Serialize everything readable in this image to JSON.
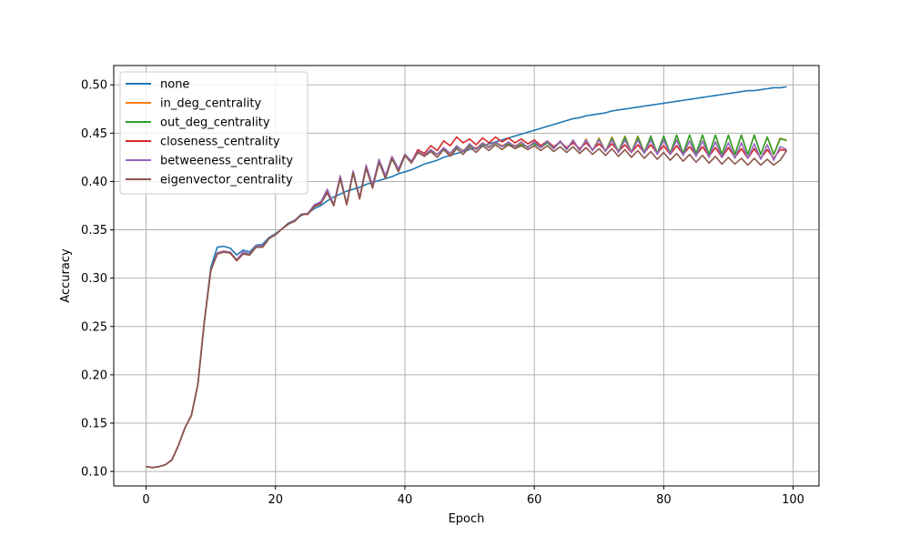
{
  "chart_data": {
    "type": "line",
    "title": "",
    "xlabel": "Epoch",
    "ylabel": "Accuracy",
    "xlim": [
      -5,
      104
    ],
    "ylim": [
      0.085,
      0.52
    ],
    "x_ticks": [
      0,
      20,
      40,
      60,
      80,
      100
    ],
    "x_tick_labels": [
      "0",
      "20",
      "40",
      "60",
      "80",
      "100"
    ],
    "y_ticks": [
      0.1,
      0.15,
      0.2,
      0.25,
      0.3,
      0.35,
      0.4,
      0.45,
      0.5
    ],
    "y_tick_labels": [
      "0.10",
      "0.15",
      "0.20",
      "0.25",
      "0.30",
      "0.35",
      "0.40",
      "0.45",
      "0.50"
    ],
    "grid": true,
    "legend_position": "upper left",
    "series": [
      {
        "name": "none",
        "color": "#1f77b4",
        "values": [
          0.105,
          0.104,
          0.105,
          0.107,
          0.112,
          0.127,
          0.145,
          0.158,
          0.19,
          0.255,
          0.311,
          0.332,
          0.333,
          0.331,
          0.324,
          0.329,
          0.327,
          0.334,
          0.335,
          0.342,
          0.346,
          0.351,
          0.357,
          0.36,
          0.365,
          0.367,
          0.372,
          0.375,
          0.38,
          0.384,
          0.387,
          0.39,
          0.392,
          0.394,
          0.397,
          0.399,
          0.401,
          0.403,
          0.405,
          0.408,
          0.41,
          0.412,
          0.415,
          0.418,
          0.42,
          0.422,
          0.425,
          0.427,
          0.429,
          0.431,
          0.433,
          0.435,
          0.437,
          0.439,
          0.441,
          0.443,
          0.445,
          0.447,
          0.449,
          0.451,
          0.453,
          0.455,
          0.457,
          0.459,
          0.461,
          0.463,
          0.465,
          0.466,
          0.468,
          0.469,
          0.47,
          0.471,
          0.473,
          0.474,
          0.475,
          0.476,
          0.477,
          0.478,
          0.479,
          0.48,
          0.481,
          0.482,
          0.483,
          0.484,
          0.485,
          0.486,
          0.487,
          0.488,
          0.489,
          0.49,
          0.491,
          0.492,
          0.493,
          0.494,
          0.494,
          0.495,
          0.496,
          0.497,
          0.497,
          0.498
        ]
      },
      {
        "name": "in_deg_centrality",
        "color": "#ff7f0e",
        "values": [
          0.105,
          0.104,
          0.105,
          0.107,
          0.112,
          0.127,
          0.145,
          0.158,
          0.19,
          0.255,
          0.308,
          0.326,
          0.328,
          0.327,
          0.319,
          0.327,
          0.325,
          0.333,
          0.333,
          0.341,
          0.345,
          0.351,
          0.356,
          0.36,
          0.366,
          0.366,
          0.374,
          0.377,
          0.39,
          0.375,
          0.404,
          0.376,
          0.41,
          0.382,
          0.415,
          0.394,
          0.421,
          0.404,
          0.424,
          0.411,
          0.427,
          0.42,
          0.43,
          0.427,
          0.431,
          0.428,
          0.434,
          0.428,
          0.436,
          0.432,
          0.438,
          0.434,
          0.44,
          0.436,
          0.441,
          0.437,
          0.44,
          0.437,
          0.439,
          0.436,
          0.44,
          0.435,
          0.441,
          0.434,
          0.442,
          0.433,
          0.443,
          0.432,
          0.444,
          0.432,
          0.445,
          0.431,
          0.446,
          0.431,
          0.447,
          0.43,
          0.447,
          0.43,
          0.447,
          0.429,
          0.447,
          0.429,
          0.448,
          0.429,
          0.448,
          0.429,
          0.448,
          0.428,
          0.448,
          0.428,
          0.448,
          0.428,
          0.448,
          0.428,
          0.448,
          0.428,
          0.446,
          0.428,
          0.445,
          0.442
        ]
      },
      {
        "name": "out_deg_centrality",
        "color": "#2ca02c",
        "values": [
          0.105,
          0.104,
          0.105,
          0.107,
          0.112,
          0.127,
          0.145,
          0.158,
          0.19,
          0.255,
          0.308,
          0.325,
          0.327,
          0.326,
          0.319,
          0.326,
          0.324,
          0.332,
          0.332,
          0.341,
          0.345,
          0.351,
          0.356,
          0.36,
          0.366,
          0.367,
          0.375,
          0.378,
          0.389,
          0.376,
          0.404,
          0.377,
          0.409,
          0.383,
          0.414,
          0.395,
          0.42,
          0.405,
          0.423,
          0.412,
          0.428,
          0.421,
          0.43,
          0.427,
          0.432,
          0.428,
          0.434,
          0.429,
          0.436,
          0.431,
          0.438,
          0.433,
          0.439,
          0.435,
          0.44,
          0.436,
          0.439,
          0.436,
          0.438,
          0.436,
          0.439,
          0.435,
          0.44,
          0.434,
          0.441,
          0.433,
          0.442,
          0.432,
          0.443,
          0.432,
          0.444,
          0.431,
          0.445,
          0.431,
          0.446,
          0.43,
          0.446,
          0.43,
          0.447,
          0.429,
          0.447,
          0.429,
          0.448,
          0.429,
          0.448,
          0.429,
          0.448,
          0.428,
          0.448,
          0.428,
          0.448,
          0.428,
          0.448,
          0.428,
          0.448,
          0.428,
          0.446,
          0.428,
          0.444,
          0.443
        ]
      },
      {
        "name": "closeness_centrality",
        "color": "#d62728",
        "values": [
          0.105,
          0.104,
          0.105,
          0.107,
          0.112,
          0.127,
          0.145,
          0.158,
          0.19,
          0.255,
          0.308,
          0.325,
          0.327,
          0.326,
          0.318,
          0.325,
          0.324,
          0.332,
          0.332,
          0.341,
          0.345,
          0.351,
          0.356,
          0.359,
          0.366,
          0.367,
          0.375,
          0.378,
          0.389,
          0.375,
          0.405,
          0.376,
          0.41,
          0.382,
          0.415,
          0.394,
          0.421,
          0.404,
          0.425,
          0.411,
          0.428,
          0.42,
          0.433,
          0.429,
          0.437,
          0.432,
          0.442,
          0.437,
          0.446,
          0.44,
          0.444,
          0.438,
          0.445,
          0.44,
          0.446,
          0.441,
          0.445,
          0.44,
          0.444,
          0.439,
          0.443,
          0.437,
          0.442,
          0.436,
          0.441,
          0.435,
          0.44,
          0.434,
          0.44,
          0.433,
          0.439,
          0.432,
          0.439,
          0.431,
          0.438,
          0.43,
          0.438,
          0.43,
          0.438,
          0.429,
          0.437,
          0.428,
          0.437,
          0.428,
          0.436,
          0.427,
          0.436,
          0.426,
          0.435,
          0.425,
          0.435,
          0.425,
          0.434,
          0.424,
          0.434,
          0.424,
          0.433,
          0.424,
          0.433,
          0.432
        ]
      },
      {
        "name": "betweeness_centrality",
        "color": "#9467bd",
        "values": [
          0.105,
          0.104,
          0.105,
          0.107,
          0.112,
          0.127,
          0.145,
          0.158,
          0.19,
          0.255,
          0.308,
          0.326,
          0.328,
          0.327,
          0.319,
          0.327,
          0.325,
          0.333,
          0.333,
          0.341,
          0.345,
          0.351,
          0.356,
          0.36,
          0.366,
          0.367,
          0.376,
          0.379,
          0.392,
          0.376,
          0.406,
          0.377,
          0.411,
          0.383,
          0.417,
          0.396,
          0.423,
          0.406,
          0.426,
          0.413,
          0.428,
          0.421,
          0.431,
          0.427,
          0.433,
          0.428,
          0.435,
          0.429,
          0.437,
          0.431,
          0.439,
          0.433,
          0.44,
          0.435,
          0.441,
          0.436,
          0.441,
          0.436,
          0.441,
          0.435,
          0.441,
          0.435,
          0.442,
          0.434,
          0.442,
          0.433,
          0.443,
          0.432,
          0.443,
          0.432,
          0.443,
          0.431,
          0.443,
          0.43,
          0.443,
          0.43,
          0.443,
          0.429,
          0.443,
          0.428,
          0.443,
          0.428,
          0.443,
          0.427,
          0.442,
          0.426,
          0.442,
          0.425,
          0.441,
          0.425,
          0.44,
          0.424,
          0.44,
          0.424,
          0.439,
          0.423,
          0.438,
          0.422,
          0.436,
          0.433
        ]
      },
      {
        "name": "eigenvector_centrality",
        "color": "#8c564b",
        "values": [
          0.105,
          0.104,
          0.105,
          0.107,
          0.112,
          0.127,
          0.145,
          0.158,
          0.19,
          0.255,
          0.308,
          0.325,
          0.327,
          0.326,
          0.318,
          0.325,
          0.324,
          0.332,
          0.332,
          0.341,
          0.345,
          0.351,
          0.356,
          0.359,
          0.366,
          0.366,
          0.374,
          0.377,
          0.388,
          0.375,
          0.403,
          0.376,
          0.409,
          0.382,
          0.414,
          0.393,
          0.42,
          0.403,
          0.424,
          0.41,
          0.427,
          0.419,
          0.43,
          0.426,
          0.431,
          0.425,
          0.433,
          0.426,
          0.434,
          0.428,
          0.436,
          0.43,
          0.437,
          0.432,
          0.438,
          0.433,
          0.438,
          0.434,
          0.437,
          0.433,
          0.437,
          0.432,
          0.437,
          0.431,
          0.436,
          0.43,
          0.436,
          0.429,
          0.435,
          0.428,
          0.434,
          0.427,
          0.434,
          0.426,
          0.433,
          0.425,
          0.432,
          0.424,
          0.431,
          0.423,
          0.43,
          0.422,
          0.429,
          0.421,
          0.428,
          0.42,
          0.427,
          0.419,
          0.426,
          0.418,
          0.425,
          0.418,
          0.424,
          0.417,
          0.424,
          0.417,
          0.423,
          0.417,
          0.422,
          0.432
        ]
      }
    ]
  }
}
